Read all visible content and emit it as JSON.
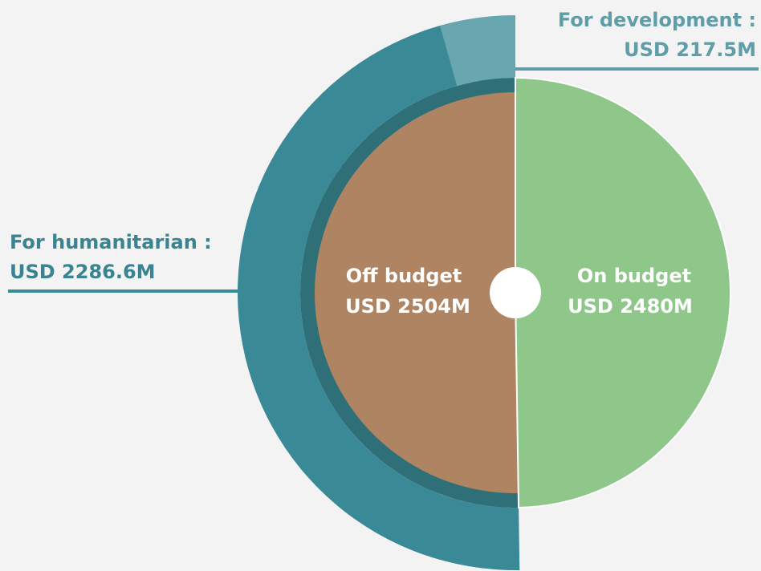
{
  "chart_data": {
    "type": "sunburst",
    "categories": [
      "Off budget",
      "On budget"
    ],
    "values": [
      2504,
      2480
    ],
    "value_labels": [
      "USD 2504M",
      "USD 2480M"
    ],
    "colors": [
      "#ae8462",
      "#8fc78b"
    ],
    "children": {
      "categories": [
        "For humanitarian :",
        "For development :"
      ],
      "values": [
        2286.6,
        217.5
      ],
      "value_labels": [
        "USD 2286.6M",
        "USD 217.5M"
      ],
      "colors": [
        "#3a8996",
        "#68a6b0"
      ]
    }
  }
}
